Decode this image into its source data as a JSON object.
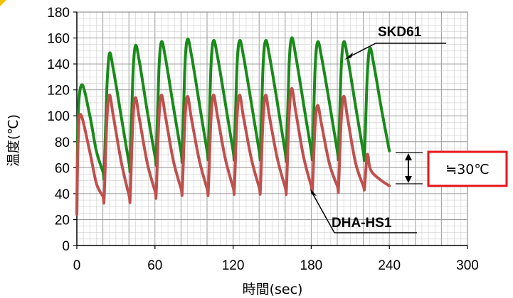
{
  "chart_data": {
    "type": "line",
    "xlabel": "時間(sec)",
    "ylabel": "温度(℃)",
    "xlim": [
      0,
      300
    ],
    "ylim": [
      0,
      180
    ],
    "xticks": [
      "0",
      "60",
      "120",
      "180",
      "240",
      "300"
    ],
    "yticks": [
      "0",
      "20",
      "40",
      "60",
      "80",
      "100",
      "120",
      "140",
      "160",
      "180"
    ],
    "grid": true,
    "series": [
      {
        "name": "SKD61",
        "color": "#1a8a1a",
        "x": [
          0,
          1,
          4,
          10,
          15,
          20,
          21,
          23,
          25,
          28,
          34,
          40,
          41,
          43,
          45,
          48,
          54,
          60,
          61,
          63,
          65,
          68,
          74,
          80,
          81,
          83,
          85,
          88,
          94,
          100,
          101,
          103,
          105,
          108,
          114,
          120,
          121,
          123,
          125,
          128,
          134,
          140,
          141,
          143,
          145,
          148,
          154,
          160,
          161,
          163,
          165,
          168,
          174,
          180,
          181,
          183,
          185,
          188,
          194,
          200,
          201,
          203,
          205,
          208,
          214,
          220,
          221,
          223,
          225,
          228,
          234,
          240
        ],
        "y": [
          24,
          100,
          124,
          100,
          73,
          57,
          56,
          120,
          148,
          136,
          100,
          64,
          63,
          130,
          154,
          142,
          104,
          69,
          68,
          135,
          157,
          145,
          108,
          72,
          70,
          138,
          159,
          147,
          110,
          73,
          72,
          138,
          158,
          146,
          110,
          73,
          72,
          138,
          158,
          146,
          110,
          73,
          72,
          138,
          158,
          146,
          110,
          72,
          71,
          139,
          160,
          147,
          110,
          73,
          72,
          137,
          157,
          145,
          110,
          73,
          72,
          136,
          157,
          145,
          108,
          72,
          71,
          130,
          152,
          140,
          105,
          73
        ]
      },
      {
        "name": "DHA-HS1",
        "color": "#c0504d",
        "x": [
          0,
          1,
          3,
          10,
          15,
          20,
          21,
          23,
          25,
          28,
          34,
          40,
          41,
          43,
          45,
          48,
          54,
          60,
          61,
          63,
          65,
          68,
          74,
          80,
          81,
          83,
          85,
          88,
          94,
          100,
          101,
          103,
          105,
          108,
          114,
          120,
          121,
          123,
          125,
          128,
          134,
          140,
          141,
          143,
          145,
          148,
          154,
          160,
          161,
          163,
          165,
          168,
          174,
          180,
          181,
          183,
          185,
          188,
          194,
          200,
          201,
          203,
          205,
          208,
          214,
          220,
          221,
          223,
          225,
          228,
          234,
          240
        ],
        "y": [
          24,
          80,
          101,
          72,
          48,
          38,
          37,
          95,
          116,
          100,
          65,
          39,
          38,
          95,
          114,
          98,
          64,
          42,
          41,
          97,
          116,
          100,
          66,
          44,
          43,
          96,
          115,
          98,
          66,
          44,
          43,
          97,
          116,
          100,
          67,
          45,
          44,
          98,
          116,
          99,
          67,
          45,
          44,
          97,
          116,
          99,
          67,
          45,
          44,
          100,
          121,
          104,
          69,
          46,
          45,
          93,
          108,
          93,
          63,
          46,
          45,
          96,
          115,
          98,
          64,
          46,
          45,
          70,
          60,
          55,
          50,
          46
        ]
      }
    ],
    "annotation": {
      "text": "≒30℃",
      "range": [
        48,
        72
      ]
    }
  },
  "labels": {
    "skd61": "SKD61",
    "dha": "DHA-HS1"
  }
}
